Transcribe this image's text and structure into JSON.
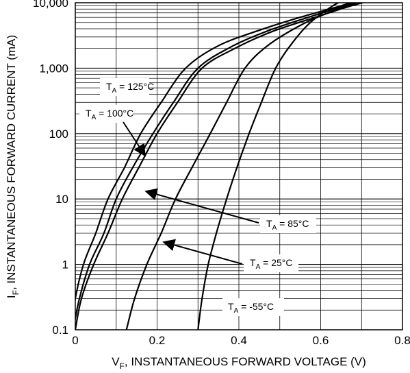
{
  "chart_data": {
    "type": "line",
    "title": "",
    "xlabel": {
      "main": "V",
      "sub": "F",
      "rest": ", INSTANTANEOUS FORWARD VOLTAGE (V)"
    },
    "ylabel": {
      "main": "I",
      "sub": "F",
      "rest": ", INSTANTANEOUS FORWARD CURRENT (mA)"
    },
    "xlim": [
      0,
      0.8
    ],
    "ylim": [
      0.1,
      10000
    ],
    "yscale": "log",
    "grid": true,
    "x_ticks": [
      {
        "value": 0,
        "label": "0"
      },
      {
        "value": 0.2,
        "label": "0.2"
      },
      {
        "value": 0.4,
        "label": "0.4"
      },
      {
        "value": 0.6,
        "label": "0.6"
      },
      {
        "value": 0.8,
        "label": "0.8"
      }
    ],
    "y_ticks": [
      {
        "value": 0.1,
        "label": "0.1"
      },
      {
        "value": 1,
        "label": "1"
      },
      {
        "value": 10,
        "label": "10"
      },
      {
        "value": 100,
        "label": "100"
      },
      {
        "value": 1000,
        "label": "1,000"
      },
      {
        "value": 10000,
        "label": "10,000"
      }
    ],
    "series": [
      {
        "name": "T_A = 125°C",
        "points": [
          [
            -0.01,
            0.1
          ],
          [
            0.0,
            0.3
          ],
          [
            0.02,
            1
          ],
          [
            0.05,
            3
          ],
          [
            0.08,
            10
          ],
          [
            0.12,
            30
          ],
          [
            0.16,
            100
          ],
          [
            0.21,
            300
          ],
          [
            0.27,
            1000
          ],
          [
            0.35,
            2200
          ],
          [
            0.45,
            3800
          ],
          [
            0.55,
            6000
          ],
          [
            0.65,
            9000
          ],
          [
            0.7,
            11500
          ]
        ]
      },
      {
        "name": "T_A = 100°C",
        "points": [
          [
            -0.005,
            0.1
          ],
          [
            0.01,
            0.3
          ],
          [
            0.035,
            1
          ],
          [
            0.07,
            3
          ],
          [
            0.1,
            10
          ],
          [
            0.14,
            30
          ],
          [
            0.19,
            100
          ],
          [
            0.24,
            300
          ],
          [
            0.3,
            1000
          ],
          [
            0.38,
            2100
          ],
          [
            0.47,
            3700
          ],
          [
            0.57,
            6000
          ],
          [
            0.66,
            9000
          ],
          [
            0.72,
            11500
          ]
        ]
      },
      {
        "name": "T_A = 85°C",
        "points": [
          [
            0.0,
            0.1
          ],
          [
            0.015,
            0.3
          ],
          [
            0.045,
            1
          ],
          [
            0.08,
            3
          ],
          [
            0.115,
            10
          ],
          [
            0.155,
            30
          ],
          [
            0.2,
            100
          ],
          [
            0.25,
            300
          ],
          [
            0.31,
            1000
          ],
          [
            0.39,
            2000
          ],
          [
            0.48,
            3600
          ],
          [
            0.58,
            5800
          ],
          [
            0.67,
            8800
          ],
          [
            0.74,
            11500
          ]
        ]
      },
      {
        "name": "T_A = 25°C",
        "points": [
          [
            0.125,
            0.1
          ],
          [
            0.145,
            0.3
          ],
          [
            0.175,
            1
          ],
          [
            0.21,
            3
          ],
          [
            0.245,
            10
          ],
          [
            0.285,
            30
          ],
          [
            0.33,
            100
          ],
          [
            0.37,
            300
          ],
          [
            0.415,
            1000
          ],
          [
            0.47,
            2200
          ],
          [
            0.55,
            4500
          ],
          [
            0.63,
            7500
          ],
          [
            0.7,
            10500
          ],
          [
            0.75,
            12000
          ]
        ]
      },
      {
        "name": "T_A = -55°C",
        "points": [
          [
            0.3,
            0.1
          ],
          [
            0.31,
            0.3
          ],
          [
            0.325,
            1
          ],
          [
            0.345,
            3
          ],
          [
            0.37,
            10
          ],
          [
            0.395,
            30
          ],
          [
            0.425,
            100
          ],
          [
            0.455,
            300
          ],
          [
            0.49,
            1000
          ],
          [
            0.53,
            2400
          ],
          [
            0.575,
            5000
          ],
          [
            0.63,
            9000
          ],
          [
            0.67,
            12000
          ]
        ]
      }
    ],
    "annotations": [
      {
        "main": "T",
        "sub": "A",
        "rest": " = 125°C"
      },
      {
        "main": "T",
        "sub": "A",
        "rest": " = 100°C"
      },
      {
        "main": "T",
        "sub": "A",
        "rest": " = 85°C"
      },
      {
        "main": "T",
        "sub": "A",
        "rest": " = 25°C"
      },
      {
        "main": "T",
        "sub": "A",
        "rest": " = -55°C"
      }
    ]
  }
}
